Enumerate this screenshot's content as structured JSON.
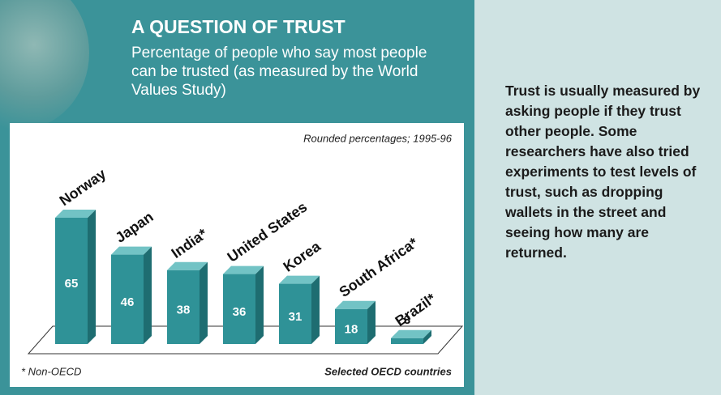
{
  "chart_data": {
    "type": "bar3d",
    "title": "A QUESTION OF TRUST",
    "subtitle": "Percentage of people who say most people can be trusted (as measured by the World Values Study)",
    "note": "Rounded percentages; 1995-96",
    "footnote": "* Non-OECD",
    "source_note": "Selected OECD countries",
    "categories": [
      "Norway",
      "Japan",
      "India*",
      "United States",
      "Korea",
      "South Africa*",
      "Brazil*"
    ],
    "values": [
      65,
      46,
      38,
      36,
      31,
      18,
      3
    ],
    "color": "#2f9297",
    "side_text": "Trust is usually measured by asking people if they trust other people. Some researchers have also tried experiments to test levels of trust, such as dropping wallets in the street and seeing how many are returned."
  }
}
